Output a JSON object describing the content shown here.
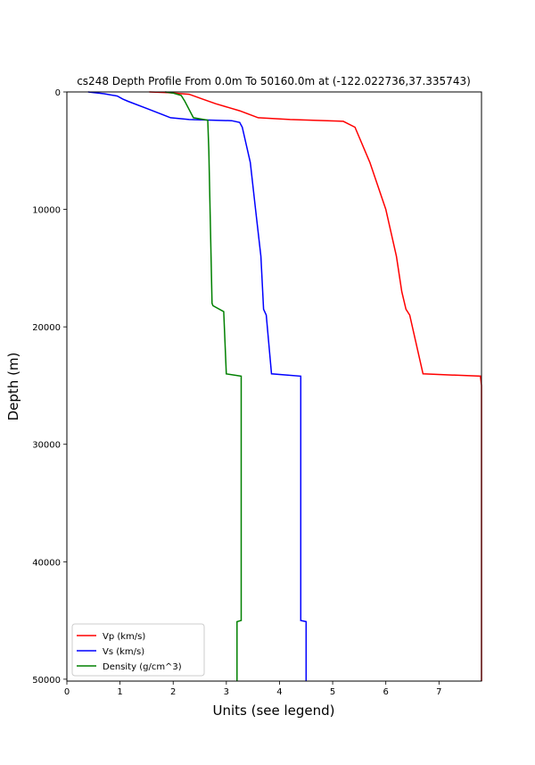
{
  "chart_data": {
    "type": "line",
    "title": "cs248 Depth Profile From 0.0m To 50160.0m at (-122.022736,37.335743)",
    "xlabel": "Units (see legend)",
    "ylabel": "Depth (m)",
    "xlim": [
      0,
      7.8
    ],
    "ylim": [
      50160,
      0
    ],
    "y_inverted": true,
    "xticks": [
      0,
      1,
      2,
      3,
      4,
      5,
      6,
      7
    ],
    "yticks": [
      0,
      10000,
      20000,
      30000,
      40000,
      50000
    ],
    "grid": false,
    "legend_position": "lower-left",
    "series": [
      {
        "name": "Vp (km/s)",
        "color": "#ff0000",
        "points": [
          [
            1.55,
            0
          ],
          [
            1.9,
            50
          ],
          [
            2.3,
            200
          ],
          [
            2.55,
            600
          ],
          [
            2.8,
            1000
          ],
          [
            3.25,
            1600
          ],
          [
            3.6,
            2200
          ],
          [
            4.2,
            2350
          ],
          [
            5.2,
            2500
          ],
          [
            5.42,
            3000
          ],
          [
            5.7,
            6000
          ],
          [
            6.0,
            10000
          ],
          [
            6.2,
            14000
          ],
          [
            6.3,
            17000
          ],
          [
            6.38,
            18500
          ],
          [
            6.45,
            19000
          ],
          [
            6.7,
            24000
          ],
          [
            7.78,
            24200
          ],
          [
            7.8,
            25000
          ],
          [
            7.8,
            50160
          ]
        ]
      },
      {
        "name": "Vs (km/s)",
        "color": "#0000ff",
        "points": [
          [
            0.4,
            0
          ],
          [
            0.7,
            150
          ],
          [
            0.95,
            350
          ],
          [
            1.05,
            600
          ],
          [
            1.15,
            800
          ],
          [
            1.5,
            1400
          ],
          [
            1.95,
            2200
          ],
          [
            2.3,
            2350
          ],
          [
            3.1,
            2450
          ],
          [
            3.25,
            2600
          ],
          [
            3.3,
            3000
          ],
          [
            3.45,
            6000
          ],
          [
            3.55,
            10000
          ],
          [
            3.65,
            14000
          ],
          [
            3.7,
            18500
          ],
          [
            3.75,
            19000
          ],
          [
            3.85,
            24000
          ],
          [
            4.4,
            24200
          ],
          [
            4.4,
            45000
          ],
          [
            4.5,
            45100
          ],
          [
            4.5,
            50160
          ]
        ]
      },
      {
        "name": "Density (g/cm^3)",
        "color": "#008000",
        "points": [
          [
            1.85,
            0
          ],
          [
            2.0,
            100
          ],
          [
            2.15,
            300
          ],
          [
            2.22,
            800
          ],
          [
            2.3,
            1500
          ],
          [
            2.38,
            2200
          ],
          [
            2.65,
            2400
          ],
          [
            2.67,
            5000
          ],
          [
            2.73,
            18000
          ],
          [
            2.75,
            18200
          ],
          [
            2.95,
            18700
          ],
          [
            3.0,
            24000
          ],
          [
            3.28,
            24200
          ],
          [
            3.28,
            45000
          ],
          [
            3.2,
            45100
          ],
          [
            3.2,
            50160
          ]
        ]
      }
    ]
  }
}
